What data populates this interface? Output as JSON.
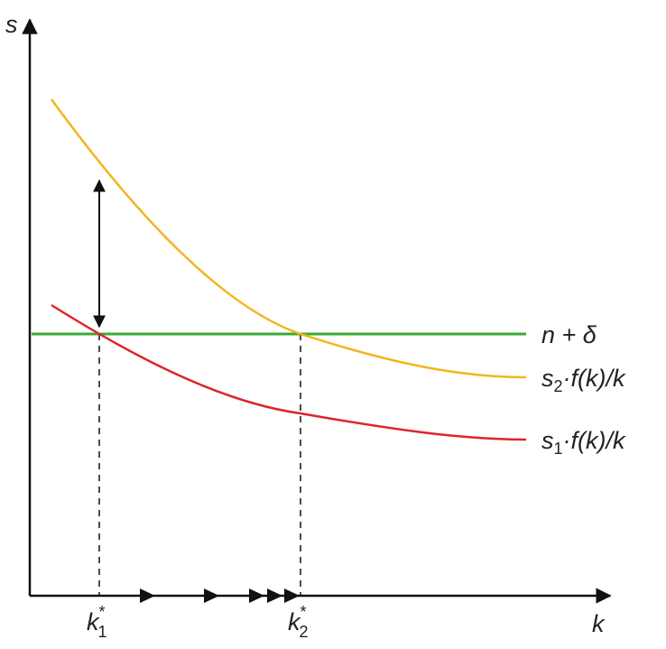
{
  "axes": {
    "y_label": "s",
    "x_label": "k"
  },
  "curves": [
    {
      "label": "n + δ"
    },
    {
      "label": {
        "base": "s",
        "sub": "2",
        "rest": "·f(k)/k"
      }
    },
    {
      "label": {
        "base": "s",
        "sub": "1",
        "rest": "·f(k)/k"
      }
    }
  ],
  "markers": [
    {
      "base": "k",
      "sub": "1",
      "sup": "*"
    },
    {
      "base": "k",
      "sub": "2",
      "sup": "*"
    }
  ]
}
